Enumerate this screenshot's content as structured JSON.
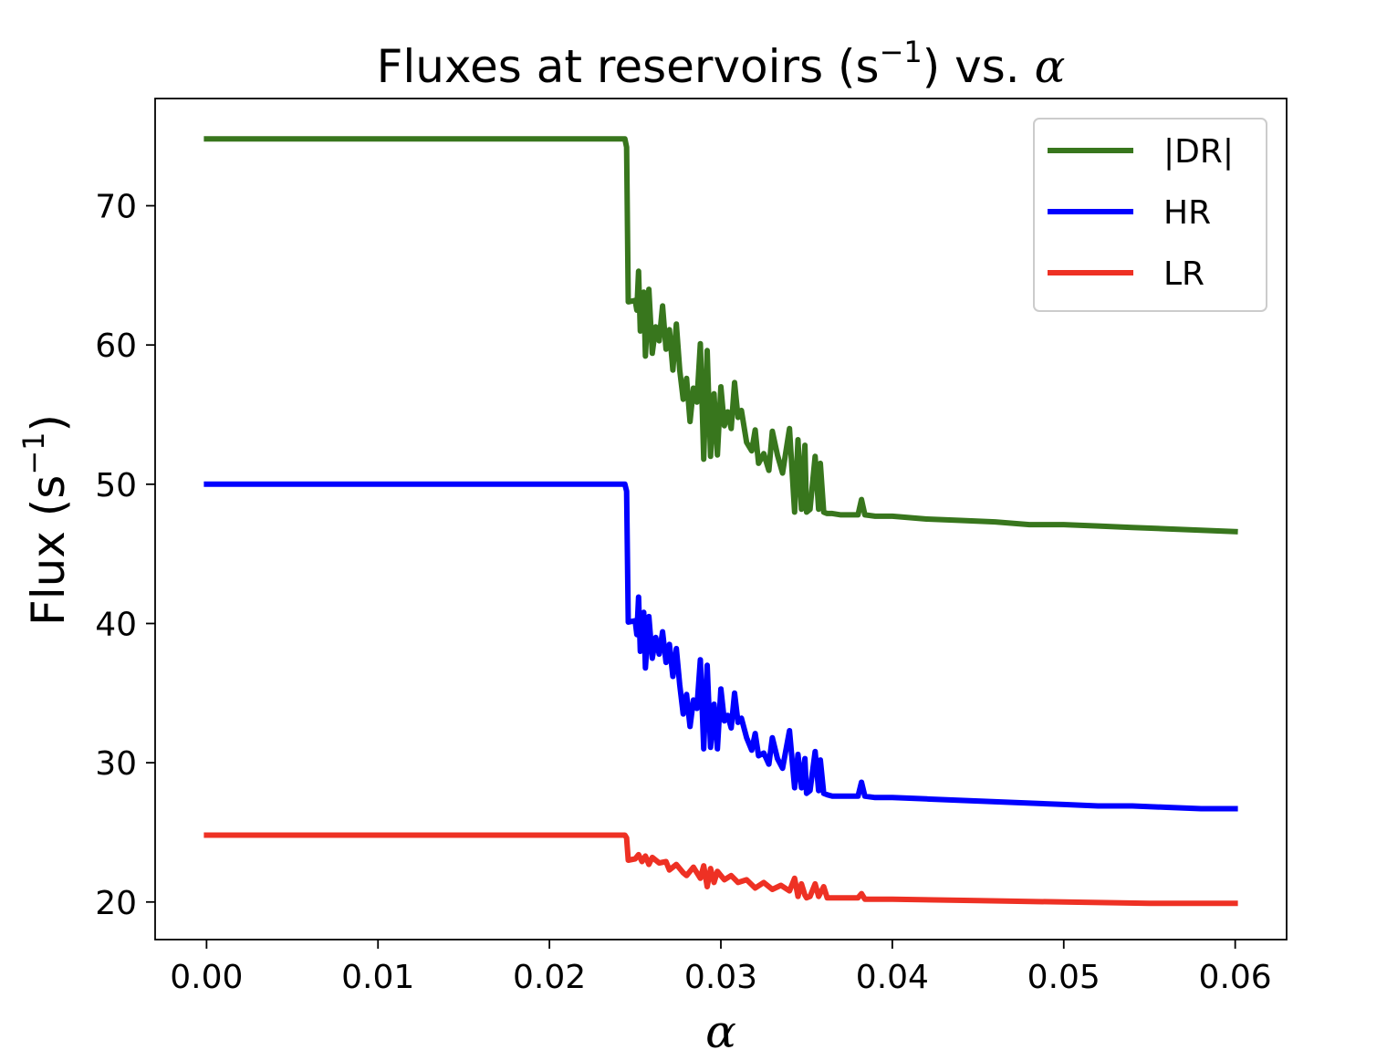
{
  "chart_data": {
    "type": "line",
    "title": {
      "text": "Fluxes at reservoirs (s",
      "sup": "−1",
      "after": ") vs. ",
      "symbol": "α"
    },
    "xlabel": "α",
    "ylabel": {
      "text": "Flux (s",
      "sup": "−1",
      "after": ")"
    },
    "xlim": [
      -0.003,
      0.063
    ],
    "ylim": [
      17.3,
      77.7
    ],
    "xticks": [
      "0.00",
      "0.01",
      "0.02",
      "0.03",
      "0.04",
      "0.05",
      "0.06"
    ],
    "yticks": [
      "20",
      "30",
      "40",
      "50",
      "60",
      "70"
    ],
    "grid": false,
    "legend_position": "top-right",
    "series": [
      {
        "name": "|DR|",
        "color": "#38761d",
        "x": [
          0.0,
          0.0244,
          0.0245,
          0.0246,
          0.025,
          0.0251,
          0.0252,
          0.0253,
          0.0255,
          0.0256,
          0.0258,
          0.026,
          0.0262,
          0.0264,
          0.0266,
          0.0268,
          0.027,
          0.0272,
          0.0274,
          0.0276,
          0.0278,
          0.028,
          0.0282,
          0.0284,
          0.0286,
          0.0288,
          0.029,
          0.0292,
          0.0294,
          0.0296,
          0.0298,
          0.03,
          0.0302,
          0.0304,
          0.0306,
          0.0308,
          0.031,
          0.0312,
          0.0315,
          0.0318,
          0.032,
          0.0322,
          0.0325,
          0.0328,
          0.033,
          0.0333,
          0.0336,
          0.034,
          0.0343,
          0.0345,
          0.0347,
          0.0349,
          0.035,
          0.0352,
          0.0355,
          0.0357,
          0.0358,
          0.036,
          0.0362,
          0.0365,
          0.037,
          0.038,
          0.0382,
          0.0384,
          0.039,
          0.04,
          0.042,
          0.044,
          0.046,
          0.048,
          0.05,
          0.052,
          0.054,
          0.056,
          0.058,
          0.06
        ],
        "y": [
          74.8,
          74.8,
          74.2,
          63.1,
          63.2,
          62.5,
          65.3,
          61.0,
          63.8,
          59.2,
          64.0,
          59.4,
          61.3,
          60.3,
          62.8,
          59.7,
          61.1,
          58.2,
          61.5,
          58.2,
          56.1,
          57.6,
          54.5,
          56.9,
          55.9,
          60.1,
          51.8,
          59.6,
          52.0,
          56.5,
          52.1,
          57.0,
          54.2,
          55.2,
          54.0,
          57.3,
          54.8,
          55.3,
          53.0,
          52.4,
          53.9,
          51.5,
          52.2,
          51.0,
          53.8,
          52.1,
          50.8,
          54.0,
          48.0,
          53.2,
          48.2,
          52.8,
          48.0,
          48.2,
          52.0,
          48.2,
          51.5,
          48.0,
          47.9,
          47.9,
          47.8,
          47.8,
          48.9,
          47.8,
          47.7,
          47.7,
          47.5,
          47.4,
          47.3,
          47.1,
          47.1,
          47.0,
          46.9,
          46.8,
          46.7,
          46.6
        ]
      },
      {
        "name": "HR",
        "color": "#0000ff",
        "x": [
          0.0,
          0.0244,
          0.0245,
          0.0246,
          0.025,
          0.0251,
          0.0252,
          0.0253,
          0.0255,
          0.0256,
          0.0258,
          0.026,
          0.0262,
          0.0264,
          0.0266,
          0.0268,
          0.027,
          0.0272,
          0.0274,
          0.0276,
          0.0278,
          0.028,
          0.0282,
          0.0284,
          0.0286,
          0.0288,
          0.029,
          0.0292,
          0.0294,
          0.0296,
          0.0298,
          0.03,
          0.0302,
          0.0304,
          0.0306,
          0.0308,
          0.031,
          0.0312,
          0.0315,
          0.0318,
          0.032,
          0.0322,
          0.0325,
          0.0328,
          0.033,
          0.0333,
          0.0336,
          0.034,
          0.0343,
          0.0345,
          0.0347,
          0.0349,
          0.035,
          0.0352,
          0.0355,
          0.0357,
          0.0358,
          0.036,
          0.0362,
          0.0365,
          0.037,
          0.038,
          0.0382,
          0.0384,
          0.039,
          0.04,
          0.042,
          0.044,
          0.046,
          0.048,
          0.05,
          0.052,
          0.054,
          0.056,
          0.058,
          0.06
        ],
        "y": [
          50.0,
          50.0,
          49.5,
          40.1,
          40.2,
          39.2,
          41.9,
          38.0,
          40.8,
          36.8,
          40.5,
          37.5,
          39.0,
          37.8,
          39.4,
          37.2,
          38.5,
          36.2,
          38.2,
          35.6,
          33.5,
          34.9,
          32.6,
          34.5,
          33.9,
          37.4,
          31.0,
          37.0,
          31.1,
          34.2,
          31.0,
          35.3,
          33.0,
          33.4,
          32.5,
          35.0,
          32.9,
          33.2,
          31.8,
          30.9,
          32.1,
          30.5,
          30.7,
          29.9,
          31.8,
          30.3,
          29.6,
          32.3,
          28.2,
          30.6,
          28.2,
          30.3,
          27.8,
          28.0,
          30.8,
          28.0,
          30.2,
          27.8,
          27.7,
          27.6,
          27.6,
          27.6,
          28.6,
          27.6,
          27.5,
          27.5,
          27.4,
          27.3,
          27.2,
          27.1,
          27.0,
          26.9,
          26.9,
          26.8,
          26.7,
          26.7
        ]
      },
      {
        "name": "LR",
        "color": "#ee3124",
        "x": [
          0.0,
          0.0244,
          0.0245,
          0.0246,
          0.025,
          0.0252,
          0.0254,
          0.0256,
          0.0258,
          0.026,
          0.0264,
          0.0268,
          0.027,
          0.0274,
          0.0278,
          0.028,
          0.0284,
          0.0288,
          0.029,
          0.0292,
          0.0294,
          0.0296,
          0.0298,
          0.03,
          0.0302,
          0.0306,
          0.031,
          0.0315,
          0.032,
          0.0325,
          0.033,
          0.0335,
          0.034,
          0.0343,
          0.0345,
          0.0347,
          0.0349,
          0.035,
          0.0352,
          0.0355,
          0.0357,
          0.036,
          0.0362,
          0.037,
          0.038,
          0.0382,
          0.0384,
          0.04,
          0.045,
          0.05,
          0.055,
          0.06
        ],
        "y": [
          24.8,
          24.8,
          24.6,
          23.0,
          23.1,
          23.4,
          22.9,
          23.3,
          22.7,
          23.2,
          22.8,
          22.9,
          22.3,
          22.7,
          22.1,
          21.9,
          22.5,
          21.7,
          22.6,
          21.1,
          22.4,
          21.4,
          22.2,
          21.9,
          21.6,
          21.9,
          21.4,
          21.6,
          21.0,
          21.4,
          20.9,
          21.2,
          20.8,
          21.7,
          20.4,
          21.3,
          20.5,
          20.3,
          20.4,
          21.3,
          20.4,
          21.1,
          20.3,
          20.3,
          20.3,
          20.6,
          20.2,
          20.2,
          20.1,
          20.0,
          19.9,
          19.9
        ]
      }
    ]
  }
}
